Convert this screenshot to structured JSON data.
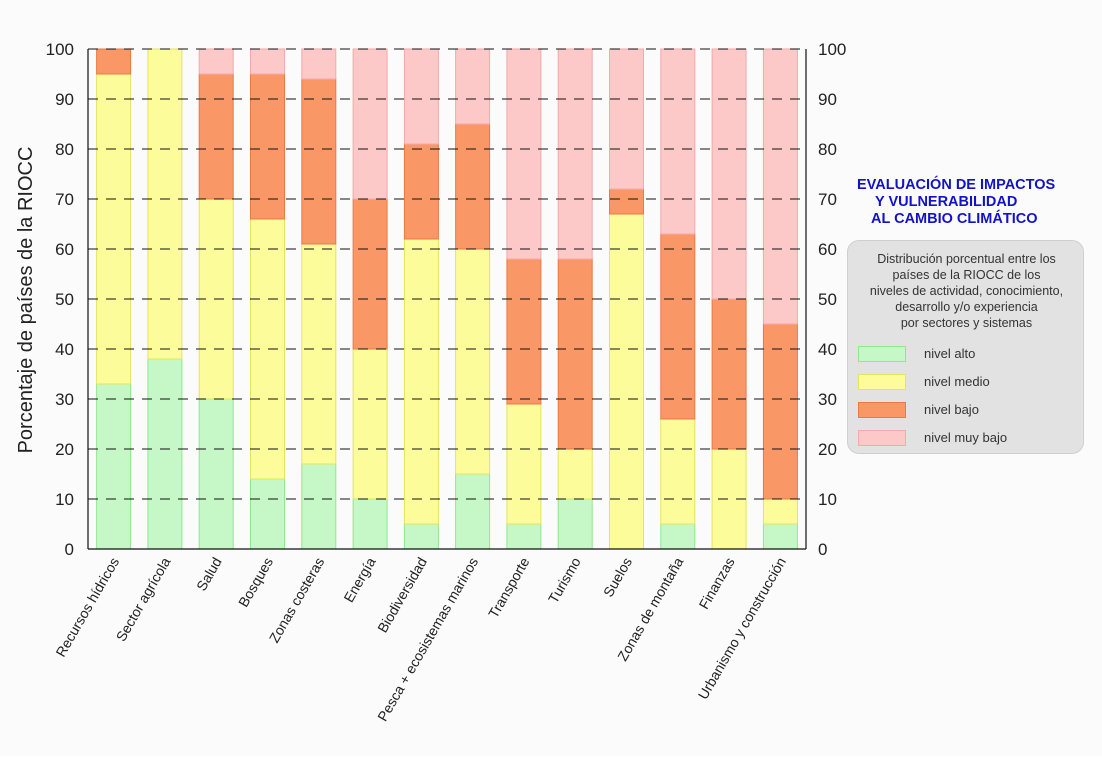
{
  "chart_data": {
    "type": "bar",
    "stacked": true,
    "title_lines": [
      "EVALUACIÓN DE IMPACTOS",
      "Y VULNERABILIDAD",
      "AL CAMBIO CLIMÁTICO"
    ],
    "ylabel": "Porcentaje de países de la RIOCC",
    "ylim": [
      0,
      100
    ],
    "yticks": [
      0,
      10,
      20,
      30,
      40,
      50,
      60,
      70,
      80,
      90,
      100
    ],
    "grid": true,
    "legend_position": "right",
    "legend_description": "Distribución porcentual entre los\npaíses de la RIOCC de los\nniveles de actividad, conocimiento,\ndesarrollo y/o experiencia\npor sectores y sistemas",
    "categories": [
      "Recursos hídricos",
      "Sector agrícola",
      "Salud",
      "Bosques",
      "Zonas costeras",
      "Energía",
      "Biodiversidad",
      "Pesca + ecosistemas marinos",
      "Transporte",
      "Turismo",
      "Suelos",
      "Zonas de montaña",
      "Finanzas",
      "Urbanismo y construcción"
    ],
    "series": [
      {
        "name": "nivel alto",
        "color": "#c6f7c6",
        "edge": "#8fe88f",
        "values": [
          33,
          38,
          30,
          14,
          17,
          10,
          5,
          15,
          5,
          10,
          0,
          5,
          0,
          5
        ]
      },
      {
        "name": "nivel medio",
        "color": "#fcfc9a",
        "edge": "#e4e460",
        "values": [
          62,
          62,
          40,
          52,
          44,
          30,
          57,
          45,
          24,
          10,
          67,
          21,
          20,
          5
        ]
      },
      {
        "name": "nivel bajo",
        "color": "#f99866",
        "edge": "#ea7a44",
        "values": [
          5,
          0,
          25,
          29,
          33,
          30,
          19,
          25,
          29,
          38,
          5,
          37,
          30,
          35
        ]
      },
      {
        "name": "nivel muy bajo",
        "color": "#fcc8c8",
        "edge": "#f2aaaa",
        "values": [
          0,
          0,
          5,
          5,
          6,
          30,
          19,
          15,
          42,
          42,
          28,
          37,
          50,
          55
        ]
      }
    ]
  }
}
